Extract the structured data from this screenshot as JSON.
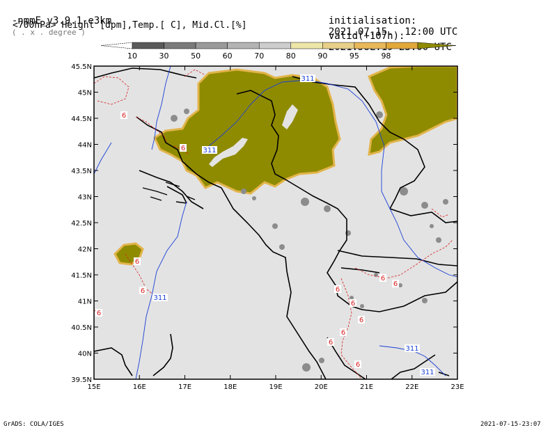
{
  "header": {
    "model": "-nmmE_v3.9.1-e3km",
    "units_note": "( . x . degree )",
    "field": "<700hPa> Height [dpm],Temp.[ C], Mid.Cl.[%]",
    "init_label": "initialisation:",
    "init_time": "2021.07.15.  12:00 UTC",
    "valid_label": "valid(+107h):",
    "valid_time": "2021.JUL.19 23:00 UTC"
  },
  "colorbar": {
    "labels": [
      "10",
      "30",
      "50",
      "60",
      "70",
      "80",
      "90",
      "95",
      "98"
    ],
    "colors": [
      "#5a5a5a",
      "#7a7a7a",
      "#9a9a9a",
      "#b4b4b4",
      "#cdcdcd",
      "#ece6a8",
      "#e8cf8a",
      "#e8b85a",
      "#e2a93a",
      "#8f8b00"
    ]
  },
  "map": {
    "lat_labels": [
      "45.5N",
      "45N",
      "44.5N",
      "44N",
      "43.5N",
      "43N",
      "42.5N",
      "42N",
      "41.5N",
      "41N",
      "40.5N",
      "40N",
      "39.5N"
    ],
    "lon_labels": [
      "15E",
      "16E",
      "17E",
      "18E",
      "19E",
      "20E",
      "21E",
      "22E",
      "23E"
    ],
    "height_labels": [
      "311",
      "311",
      "311",
      "311",
      "311"
    ],
    "temp_labels": [
      "6",
      "6",
      "6",
      "6",
      "6",
      "6",
      "6",
      "6",
      "6",
      "6",
      "6",
      "6",
      "6"
    ],
    "colors": {
      "background": "#e3e3e3",
      "cloud_dense": "#8f8b00",
      "cloud_edge": "#e2b44a",
      "cloud_grey": "#8c8c8c",
      "height_contour": "#1a3fd6",
      "temp_contour": "#d81e1e",
      "coast": "#000000"
    }
  },
  "footer": {
    "left": "GrADS: COLA/IGES",
    "right": "2021-07-15-23:07"
  }
}
